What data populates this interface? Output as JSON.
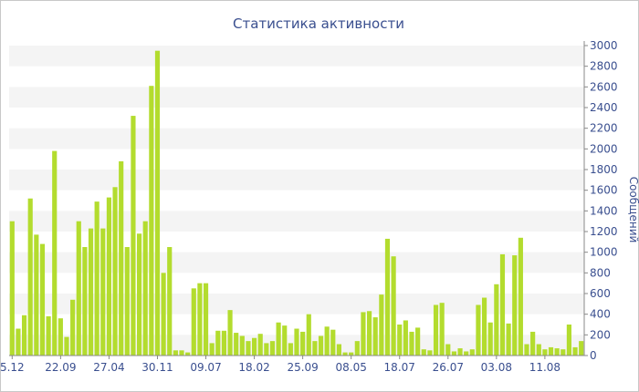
{
  "chart_data": {
    "type": "bar",
    "title": "Статистика активности",
    "ylabel": "Сообщений",
    "xlabel": "",
    "ylim": [
      0,
      3000
    ],
    "y_ticks": [
      0,
      200,
      400,
      600,
      800,
      1000,
      1200,
      1400,
      1600,
      1800,
      2000,
      2200,
      2400,
      2600,
      2800,
      3000
    ],
    "x_tick_labels": [
      {
        "index": 0,
        "label": "5.12"
      },
      {
        "index": 8,
        "label": "22.09"
      },
      {
        "index": 16,
        "label": "27.04"
      },
      {
        "index": 24,
        "label": "30.11"
      },
      {
        "index": 32,
        "label": "09.07"
      },
      {
        "index": 40,
        "label": "18.02"
      },
      {
        "index": 48,
        "label": "25.09"
      },
      {
        "index": 56,
        "label": "08.05"
      },
      {
        "index": 64,
        "label": "18.07"
      },
      {
        "index": 72,
        "label": "26.07"
      },
      {
        "index": 80,
        "label": "03.08"
      },
      {
        "index": 88,
        "label": "11.08"
      }
    ],
    "values": [
      1300,
      260,
      390,
      1520,
      1170,
      1080,
      380,
      1980,
      360,
      180,
      540,
      1300,
      1050,
      1230,
      1490,
      1230,
      1530,
      1630,
      1880,
      1050,
      2320,
      1180,
      1300,
      2610,
      2950,
      800,
      1050,
      50,
      50,
      30,
      650,
      700,
      700,
      120,
      240,
      240,
      440,
      220,
      190,
      140,
      170,
      210,
      120,
      140,
      320,
      290,
      120,
      260,
      230,
      400,
      140,
      190,
      280,
      250,
      110,
      30,
      30,
      140,
      420,
      430,
      370,
      590,
      1130,
      960,
      300,
      340,
      230,
      270,
      60,
      50,
      490,
      510,
      110,
      40,
      70,
      40,
      60,
      490,
      560,
      320,
      690,
      980,
      310,
      970,
      1140,
      110,
      230,
      110,
      60,
      80,
      70,
      60,
      300,
      80,
      140
    ],
    "colors": {
      "bar": "#b3dc2e",
      "text": "#3a4f8f",
      "band": "#f4f4f4"
    },
    "grid": true,
    "legend": "none"
  }
}
